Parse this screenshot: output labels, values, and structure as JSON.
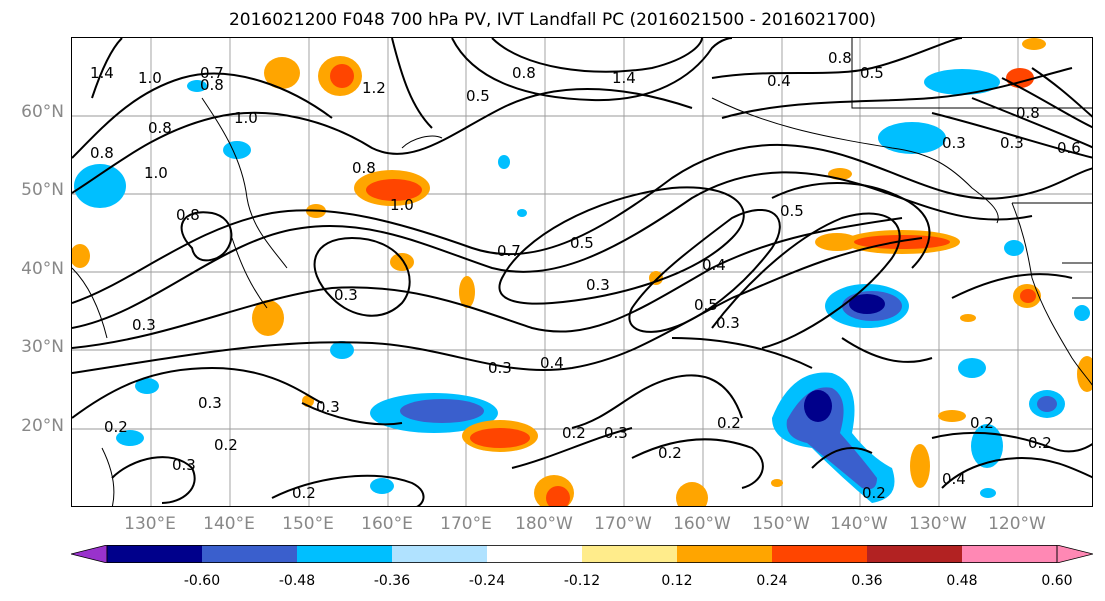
{
  "title": "2016021200 F048 700 hPa PV, IVT Landfall PC (2016021500 - 2016021700)",
  "lat_labels": [
    "60°N",
    "50°N",
    "40°N",
    "30°N",
    "20°N"
  ],
  "lon_labels": [
    "130°E",
    "140°E",
    "150°E",
    "160°E",
    "170°E",
    "180°W",
    "170°W",
    "160°W",
    "150°W",
    "140°W",
    "130°W",
    "120°W"
  ],
  "contour_labels": [
    "1.4",
    "0.7",
    "0.8",
    "1.0",
    "1.2",
    "0.8",
    "0.5",
    "1.4",
    "0.8",
    "0.5",
    "0.4",
    "0.8",
    "0.3",
    "0.3",
    "0.6",
    "1.0",
    "0.8",
    "1.0",
    "0.8",
    "0.8",
    "1.0",
    "0.8",
    "0.7",
    "0.5",
    "0.5",
    "0.4",
    "0.3",
    "0.3",
    "0.5",
    "0.3",
    "0.3",
    "0.3",
    "0.4",
    "0.3",
    "0.3",
    "0.2",
    "0.2",
    "0.2",
    "0.3",
    "0.2",
    "0.2",
    "0.2",
    "0.3",
    "0.2",
    "0.2",
    "0.4",
    "0.2"
  ],
  "colorbar": {
    "ticks": [
      "-0.60",
      "-0.48",
      "-0.36",
      "-0.24",
      "-0.12",
      "0.12",
      "0.24",
      "0.36",
      "0.48",
      "0.60"
    ],
    "colors": [
      "#9932cc",
      "#00008b",
      "#3a5fcd",
      "#00bfff",
      "#b0e2ff",
      "#ffffff",
      "#ffec8b",
      "#ffa500",
      "#ff4500",
      "#b22222",
      "#ff88b4",
      "#ff88b4"
    ]
  }
}
